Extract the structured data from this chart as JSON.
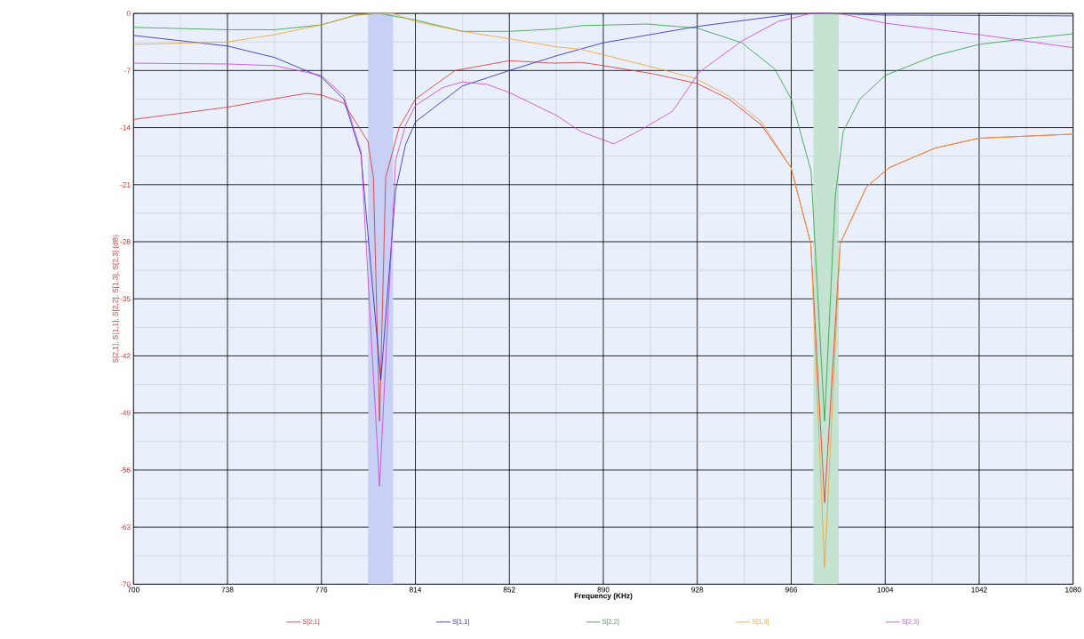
{
  "chart_data": {
    "type": "line",
    "xlabel": "Frequency (KHz)",
    "ylabel": "S[2,1], S[1,1], S[2,2], S[1,3], S[2,3] (dB)",
    "xlim": [
      700,
      1080
    ],
    "ylim": [
      -70,
      0
    ],
    "xticks": [
      700,
      738,
      776,
      814,
      852,
      890,
      928,
      966,
      1004,
      1042,
      1080
    ],
    "yticks": [
      -70,
      -63,
      -56,
      -49,
      -42,
      -35,
      -28,
      -21,
      -14,
      -7,
      0
    ],
    "grid": true,
    "legend": "bottom",
    "marker": "none",
    "line_style": "solid",
    "bands": [
      {
        "axis": "x",
        "from": 795,
        "to": 805,
        "color": "#c8d0f5"
      },
      {
        "axis": "x",
        "from": 975,
        "to": 985,
        "color": "#c4e3d0"
      }
    ],
    "series": [
      {
        "name": "S[2,1]",
        "color": "#e03030",
        "x": [
          700,
          738,
          760,
          770,
          776,
          785,
          794.8,
          797,
          799.5,
          802,
          807.4,
          814,
          830,
          852,
          870,
          881,
          890,
          910,
          928,
          940.7,
          954,
          965.9,
          973.9,
          979.5,
          985.8,
          996.4,
          1005.7,
          1024.3,
          1042,
          1080
        ],
        "values": [
          -13.0,
          -11.5,
          -10.3,
          -9.8,
          -10.0,
          -11.0,
          -15.7,
          -20.1,
          -50,
          -20.1,
          -14.0,
          -10.5,
          -7.0,
          -5.8,
          -6.1,
          -6.0,
          -6.4,
          -7.4,
          -8.6,
          -10.5,
          -13.7,
          -18.9,
          -28.2,
          -60,
          -28.2,
          -21.3,
          -18.9,
          -16.5,
          -15.3,
          -14.8
        ]
      },
      {
        "name": "S[1,1]",
        "color": "#2828c0",
        "x": [
          700,
          738,
          757,
          776,
          785,
          792,
          800,
          806,
          810,
          814,
          833,
          852,
          871,
          890,
          928,
          966,
          980,
          1004,
          1080
        ],
        "values": [
          -2.7,
          -4.0,
          -5.4,
          -7.8,
          -10.5,
          -17.3,
          -45,
          -21.7,
          -16.1,
          -13.3,
          -8.9,
          -7.0,
          -5.2,
          -3.6,
          -1.6,
          -0.1,
          0,
          -0.2,
          -0.3
        ]
      },
      {
        "name": "S[2,2]",
        "color": "#30a040",
        "x": [
          700,
          738,
          757,
          776,
          790,
          799.5,
          814,
          833,
          852,
          871,
          881,
          907.6,
          928,
          946,
          959.3,
          966,
          974,
          979.5,
          983.8,
          987,
          993.8,
          1004,
          1023.9,
          1042,
          1061,
          1080
        ],
        "values": [
          -1.7,
          -2.0,
          -2.0,
          -1.4,
          -0.2,
          0,
          -0.8,
          -2.2,
          -2.2,
          -1.9,
          -1.5,
          -1.3,
          -1.8,
          -3.6,
          -6.8,
          -10.5,
          -19.3,
          -50,
          -22.5,
          -14.5,
          -10.5,
          -7.6,
          -5.2,
          -3.8,
          -3.1,
          -2.5
        ]
      },
      {
        "name": "S[1,3]",
        "color": "#f0a030",
        "x": [
          700,
          738,
          757,
          776,
          790,
          799.5,
          805,
          814,
          833,
          852,
          871,
          881,
          907.6,
          927.5,
          940.7,
          954,
          965.9,
          973.9,
          979.5,
          985.8,
          996.4,
          1005.7,
          1024.3,
          1042,
          1080
        ],
        "values": [
          -3.8,
          -3.5,
          -2.6,
          -1.4,
          -0.2,
          0,
          0,
          -1.0,
          -2.2,
          -3.1,
          -4.1,
          -4.4,
          -6.4,
          -8.0,
          -10.1,
          -13.3,
          -18.9,
          -28.2,
          -68,
          -28.2,
          -21.3,
          -18.9,
          -16.5,
          -15.3,
          -14.8
        ]
      },
      {
        "name": "S[2,3]",
        "color": "#d040d0",
        "x": [
          700,
          738,
          757,
          776,
          785,
          792,
          799.5,
          806,
          810,
          814,
          825,
          833,
          843,
          852,
          871,
          881,
          894.3,
          905,
          918,
          928.8,
          946,
          960.6,
          974,
          980,
          987,
          1004,
          1042,
          1080
        ],
        "values": [
          -6.1,
          -6.2,
          -6.4,
          -7.6,
          -10.1,
          -16.9,
          -58,
          -18.0,
          -13.7,
          -11.3,
          -9.1,
          -8.4,
          -8.7,
          -9.7,
          -12.5,
          -14.5,
          -16.0,
          -14.3,
          -12.0,
          -7.2,
          -3.4,
          -1.0,
          0,
          0,
          -0.1,
          -1.2,
          -2.6,
          -4.2
        ]
      }
    ]
  }
}
